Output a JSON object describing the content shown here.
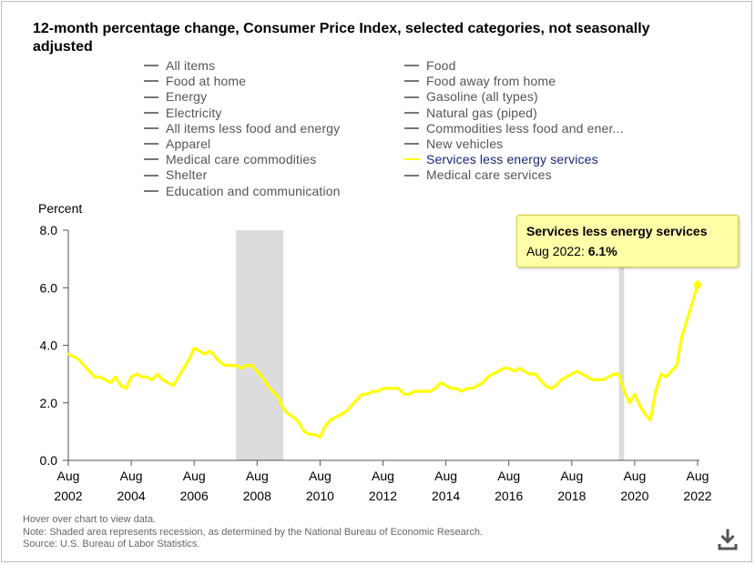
{
  "title": "12-month percentage change, Consumer Price Index, selected categories, not seasonally adjusted",
  "legend": {
    "left": [
      "All items",
      "Food at home",
      "Energy",
      "Electricity",
      "All items less food and energy",
      "Apparel",
      "Medical care commodities",
      "Shelter",
      "Education and communication"
    ],
    "right": [
      "Food",
      "Food away from home",
      "Gasoline (all types)",
      "Natural gas (piped)",
      "Commodities less food and ener...",
      "New vehicles",
      "Services less energy services",
      "Medical care services"
    ],
    "active": "Services less energy services"
  },
  "tooltip": {
    "title": "Services less energy services",
    "label": "Aug 2022: ",
    "value": "6.1%"
  },
  "notes": [
    "Hover over chart to view data.",
    "Note: Shaded area represents recession, as determined by the National Bureau of Economic Research.",
    "Source: U.S. Bureau of Labor Statistics."
  ],
  "colors": {
    "series": "#ffff00",
    "recession": "#dcdcdc",
    "axis": "#555555"
  },
  "icons": {
    "download": "download-icon"
  },
  "chart_data": {
    "type": "line",
    "ylabel": "Percent",
    "ylim": [
      0,
      8
    ],
    "yticks": [
      "0.0",
      "2.0",
      "4.0",
      "6.0",
      "8.0"
    ],
    "xticks": [
      {
        "month": "Aug",
        "year": "2002"
      },
      {
        "month": "Aug",
        "year": "2004"
      },
      {
        "month": "Aug",
        "year": "2006"
      },
      {
        "month": "Aug",
        "year": "2008"
      },
      {
        "month": "Aug",
        "year": "2010"
      },
      {
        "month": "Aug",
        "year": "2012"
      },
      {
        "month": "Aug",
        "year": "2014"
      },
      {
        "month": "Aug",
        "year": "2016"
      },
      {
        "month": "Aug",
        "year": "2018"
      },
      {
        "month": "Aug",
        "year": "2020"
      },
      {
        "month": "Aug",
        "year": "2022"
      }
    ],
    "xrange": [
      2002.583,
      2022.583
    ],
    "recessions": [
      [
        2007.917,
        2009.417
      ],
      [
        2020.083,
        2020.25
      ]
    ],
    "series": [
      {
        "name": "Services less energy services",
        "points": [
          [
            2002.58,
            3.7
          ],
          [
            2002.75,
            3.6
          ],
          [
            2002.92,
            3.5
          ],
          [
            2003.08,
            3.3
          ],
          [
            2003.25,
            3.1
          ],
          [
            2003.42,
            2.9
          ],
          [
            2003.58,
            2.9
          ],
          [
            2003.75,
            2.8
          ],
          [
            2003.92,
            2.7
          ],
          [
            2004.08,
            2.9
          ],
          [
            2004.25,
            2.6
          ],
          [
            2004.42,
            2.5
          ],
          [
            2004.58,
            2.9
          ],
          [
            2004.75,
            3.0
          ],
          [
            2004.92,
            2.9
          ],
          [
            2005.08,
            2.9
          ],
          [
            2005.25,
            2.8
          ],
          [
            2005.42,
            3.0
          ],
          [
            2005.58,
            2.8
          ],
          [
            2005.75,
            2.7
          ],
          [
            2005.92,
            2.6
          ],
          [
            2006.08,
            2.9
          ],
          [
            2006.25,
            3.2
          ],
          [
            2006.42,
            3.5
          ],
          [
            2006.58,
            3.9
          ],
          [
            2006.75,
            3.8
          ],
          [
            2006.92,
            3.7
          ],
          [
            2007.08,
            3.8
          ],
          [
            2007.25,
            3.6
          ],
          [
            2007.42,
            3.4
          ],
          [
            2007.58,
            3.3
          ],
          [
            2007.75,
            3.3
          ],
          [
            2007.92,
            3.3
          ],
          [
            2008.08,
            3.2
          ],
          [
            2008.25,
            3.3
          ],
          [
            2008.42,
            3.3
          ],
          [
            2008.58,
            3.1
          ],
          [
            2008.75,
            2.9
          ],
          [
            2008.92,
            2.6
          ],
          [
            2009.08,
            2.4
          ],
          [
            2009.25,
            2.2
          ],
          [
            2009.42,
            1.8
          ],
          [
            2009.58,
            1.6
          ],
          [
            2009.75,
            1.5
          ],
          [
            2009.92,
            1.3
          ],
          [
            2010.08,
            1.0
          ],
          [
            2010.25,
            0.9
          ],
          [
            2010.42,
            0.9
          ],
          [
            2010.58,
            0.8
          ],
          [
            2010.75,
            1.2
          ],
          [
            2010.92,
            1.4
          ],
          [
            2011.08,
            1.5
          ],
          [
            2011.25,
            1.6
          ],
          [
            2011.42,
            1.7
          ],
          [
            2011.58,
            1.9
          ],
          [
            2011.75,
            2.1
          ],
          [
            2011.92,
            2.3
          ],
          [
            2012.08,
            2.3
          ],
          [
            2012.25,
            2.4
          ],
          [
            2012.42,
            2.4
          ],
          [
            2012.58,
            2.5
          ],
          [
            2012.75,
            2.5
          ],
          [
            2012.92,
            2.5
          ],
          [
            2013.08,
            2.5
          ],
          [
            2013.25,
            2.3
          ],
          [
            2013.42,
            2.3
          ],
          [
            2013.58,
            2.4
          ],
          [
            2013.75,
            2.4
          ],
          [
            2013.92,
            2.4
          ],
          [
            2014.08,
            2.4
          ],
          [
            2014.25,
            2.5
          ],
          [
            2014.42,
            2.7
          ],
          [
            2014.58,
            2.6
          ],
          [
            2014.75,
            2.5
          ],
          [
            2014.92,
            2.5
          ],
          [
            2015.08,
            2.4
          ],
          [
            2015.25,
            2.5
          ],
          [
            2015.42,
            2.5
          ],
          [
            2015.58,
            2.6
          ],
          [
            2015.75,
            2.7
          ],
          [
            2015.92,
            2.9
          ],
          [
            2016.08,
            3.0
          ],
          [
            2016.25,
            3.1
          ],
          [
            2016.42,
            3.2
          ],
          [
            2016.58,
            3.2
          ],
          [
            2016.75,
            3.1
          ],
          [
            2016.92,
            3.2
          ],
          [
            2017.08,
            3.1
          ],
          [
            2017.25,
            3.0
          ],
          [
            2017.42,
            3.0
          ],
          [
            2017.58,
            2.8
          ],
          [
            2017.75,
            2.6
          ],
          [
            2017.92,
            2.5
          ],
          [
            2018.08,
            2.6
          ],
          [
            2018.25,
            2.8
          ],
          [
            2018.42,
            2.9
          ],
          [
            2018.58,
            3.0
          ],
          [
            2018.75,
            3.1
          ],
          [
            2018.92,
            3.0
          ],
          [
            2019.08,
            2.9
          ],
          [
            2019.25,
            2.8
          ],
          [
            2019.42,
            2.8
          ],
          [
            2019.58,
            2.8
          ],
          [
            2019.75,
            2.9
          ],
          [
            2019.92,
            3.0
          ],
          [
            2020.08,
            3.0
          ],
          [
            2020.25,
            2.4
          ],
          [
            2020.42,
            2.0
          ],
          [
            2020.58,
            2.3
          ],
          [
            2020.75,
            1.9
          ],
          [
            2020.92,
            1.6
          ],
          [
            2021.08,
            1.4
          ],
          [
            2021.25,
            2.4
          ],
          [
            2021.42,
            3.0
          ],
          [
            2021.58,
            2.9
          ],
          [
            2021.75,
            3.1
          ],
          [
            2021.92,
            3.3
          ],
          [
            2022.08,
            4.3
          ],
          [
            2022.25,
            4.9
          ],
          [
            2022.42,
            5.5
          ],
          [
            2022.58,
            6.1
          ]
        ]
      }
    ]
  }
}
